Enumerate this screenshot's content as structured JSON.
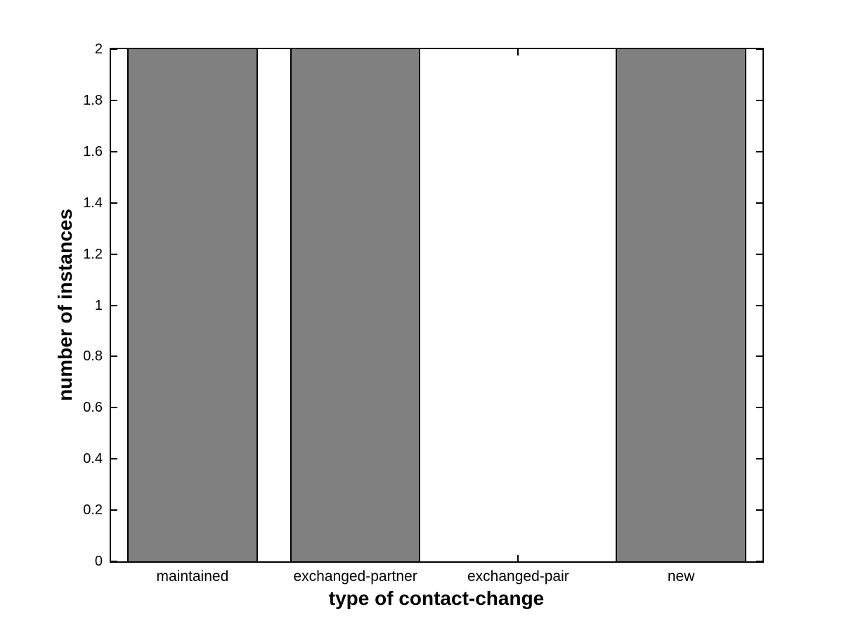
{
  "figure": {
    "background_color": "#ffffff"
  },
  "chart_data": {
    "type": "bar",
    "title": "",
    "xlabel": "type of contact-change",
    "ylabel": "number of instances",
    "categories": [
      "maintained",
      "exchanged-partner",
      "exchanged-pair",
      "new"
    ],
    "values": [
      2,
      2,
      0,
      2
    ],
    "ylim": [
      0,
      2
    ],
    "ytick_step": 0.2,
    "ytick_labels": [
      "0",
      "0.2",
      "0.4",
      "0.6",
      "0.8",
      "1",
      "1.2",
      "1.4",
      "1.6",
      "1.8",
      "2"
    ],
    "bar_width_fraction": 0.8,
    "bar_color": "#808080",
    "bar_edge_color": "#000000",
    "axis_color": "#000000",
    "grid": false,
    "legend": null,
    "box": true,
    "tick_direction": "in"
  }
}
